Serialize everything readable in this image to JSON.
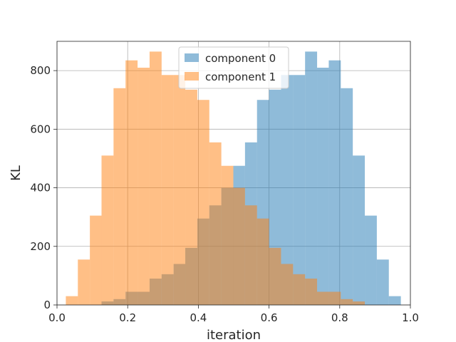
{
  "chart_data": {
    "type": "bar",
    "subtype": "histogram",
    "title": "",
    "xlabel": "iteration",
    "ylabel": "KL",
    "xlim": [
      -0.0,
      1.0
    ],
    "ylim": [
      0,
      900
    ],
    "xticks": [
      0.0,
      0.2,
      0.4,
      0.6,
      0.8,
      1.0
    ],
    "xtick_labels": [
      "0.0",
      "0.2",
      "0.4",
      "0.6",
      "0.8",
      "1.0"
    ],
    "yticks": [
      0,
      200,
      400,
      600,
      800
    ],
    "ytick_labels": [
      "0",
      "200",
      "400",
      "600",
      "800"
    ],
    "grid": true,
    "legend_position": "top-center",
    "bin_edges": [
      0.025,
      0.059,
      0.093,
      0.126,
      0.16,
      0.194,
      0.228,
      0.262,
      0.296,
      0.33,
      0.363,
      0.397,
      0.431,
      0.465,
      0.499,
      0.532,
      0.566,
      0.6,
      0.634,
      0.668,
      0.702,
      0.736,
      0.769,
      0.803,
      0.837,
      0.871,
      0.905,
      0.939,
      0.973
    ],
    "series": [
      {
        "name": "component 0",
        "color": "#1f77b4",
        "opacity": 0.5,
        "values": [
          0,
          0,
          0,
          12,
          20,
          45,
          45,
          90,
          105,
          140,
          195,
          295,
          340,
          400,
          475,
          555,
          700,
          735,
          785,
          785,
          865,
          810,
          835,
          740,
          510,
          305,
          155,
          30
        ]
      },
      {
        "name": "component 1",
        "color": "#ff7f0e",
        "opacity": 0.5,
        "values": [
          30,
          155,
          305,
          510,
          740,
          835,
          810,
          865,
          785,
          785,
          735,
          700,
          555,
          475,
          400,
          340,
          295,
          195,
          140,
          105,
          90,
          45,
          45,
          20,
          12,
          0,
          0,
          0
        ]
      }
    ]
  }
}
